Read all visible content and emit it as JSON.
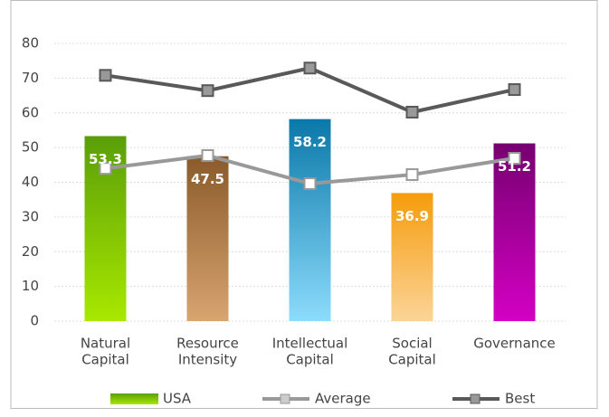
{
  "chart_data": {
    "type": "bar-line",
    "categories": [
      [
        "Natural",
        "Capital"
      ],
      [
        "Resource",
        "Intensity"
      ],
      [
        "Intellectual",
        "Capital"
      ],
      [
        "Social",
        "Capital"
      ],
      [
        "Governance"
      ]
    ],
    "series": [
      {
        "name": "USA",
        "kind": "bar",
        "values": [
          53.3,
          47.5,
          58.2,
          36.9,
          51.2
        ],
        "colors": [
          [
            "#5a9e08",
            "#a8e800"
          ],
          [
            "#8a5a2a",
            "#d8a470"
          ],
          [
            "#0a78a8",
            "#8cdcfc"
          ],
          [
            "#f59c0c",
            "#fcd498"
          ],
          [
            "#760070",
            "#d400c4"
          ]
        ]
      },
      {
        "name": "Average",
        "kind": "line",
        "color": "#999999",
        "values": [
          44,
          47.7,
          39.6,
          42.2,
          46.9
        ]
      },
      {
        "name": "Best",
        "kind": "line",
        "color": "#595959",
        "values": [
          70.8,
          66.4,
          72.9,
          60.2,
          66.7
        ]
      }
    ],
    "ylim": [
      0,
      80
    ],
    "yticks": [
      0,
      10,
      20,
      30,
      40,
      50,
      60,
      70,
      80
    ],
    "grid": true
  }
}
